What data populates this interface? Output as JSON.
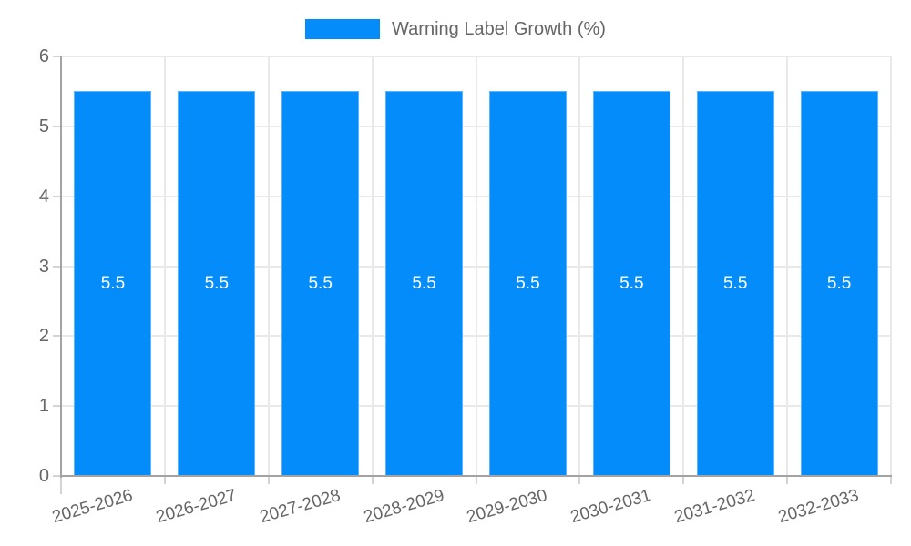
{
  "chart_data": {
    "type": "bar",
    "legend": "Warning Label Growth (%)",
    "legend_position": "top-center",
    "categories": [
      "2025-2026",
      "2026-2027",
      "2027-2028",
      "2028-2029",
      "2029-2030",
      "2030-2031",
      "2031-2032",
      "2032-2033"
    ],
    "values": [
      5.5,
      5.5,
      5.5,
      5.5,
      5.5,
      5.5,
      5.5,
      5.5
    ],
    "value_labels": [
      "5.5",
      "5.5",
      "5.5",
      "5.5",
      "5.5",
      "5.5",
      "5.5",
      "5.5"
    ],
    "yticks": [
      "0",
      "1",
      "2",
      "3",
      "4",
      "5",
      "6"
    ],
    "ylim": [
      0,
      6
    ],
    "grid": true,
    "colors": {
      "bar": "#048dfa",
      "bar_label": "#ffffff",
      "axis_line": "#a3a3a3",
      "gridline": "#e9e9e9",
      "tick": "#d4d4d4",
      "text": "#666666",
      "background": "#ffffff"
    }
  }
}
